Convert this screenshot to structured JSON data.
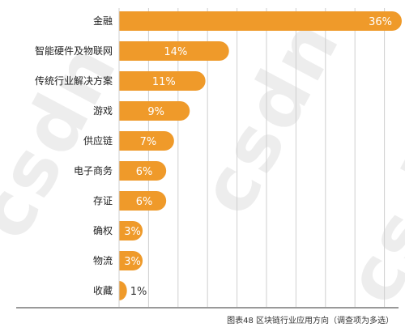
{
  "watermark": "csdn",
  "caption": "图表48 区块链行业应用方向（调查项为多选）",
  "colors": {
    "bar": "#ef9a2a",
    "bar_label": "#ffffff",
    "outside_label": "#333333",
    "grid": "#cfcfcf",
    "axis": "#333333",
    "category_label": "#222222"
  },
  "chart_data": {
    "type": "bar",
    "orientation": "horizontal",
    "title": "",
    "xlabel": "",
    "ylabel": "",
    "xlim": [
      0,
      36
    ],
    "grid": true,
    "categories": [
      "金融",
      "智能硬件及物联网",
      "传统行业解决方案",
      "游戏",
      "供应链",
      "电子商务",
      "存证",
      "确权",
      "物流",
      "收藏"
    ],
    "values": [
      36,
      14,
      11,
      9,
      7,
      6,
      6,
      3,
      3,
      1
    ],
    "value_labels": [
      "36%",
      "14%",
      "11%",
      "9%",
      "7%",
      "6%",
      "6%",
      "3%",
      "3%",
      "1%"
    ]
  }
}
